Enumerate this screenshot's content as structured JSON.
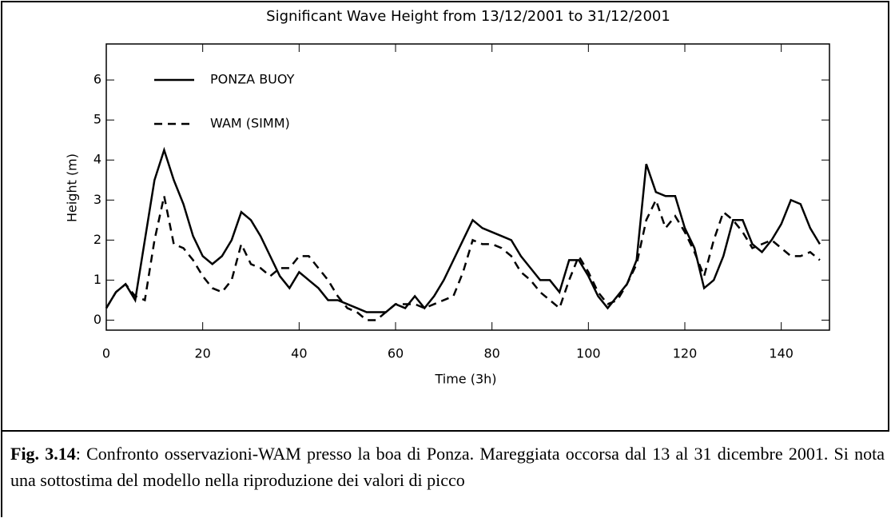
{
  "chart_data": {
    "type": "line",
    "title": "Significant Wave Height from 13/12/2001 to 31/12/2001",
    "x_label": "Time (3h)",
    "y_label": "Height (m)",
    "x": [
      0,
      2,
      4,
      6,
      8,
      10,
      12,
      14,
      16,
      18,
      20,
      22,
      24,
      26,
      28,
      30,
      32,
      34,
      36,
      38,
      40,
      42,
      44,
      46,
      48,
      50,
      52,
      54,
      56,
      58,
      60,
      62,
      64,
      66,
      68,
      70,
      72,
      74,
      76,
      78,
      80,
      82,
      84,
      86,
      88,
      90,
      92,
      94,
      96,
      98,
      100,
      102,
      104,
      106,
      108,
      110,
      112,
      114,
      116,
      118,
      120,
      122,
      124,
      126,
      128,
      130,
      132,
      134,
      136,
      138,
      140,
      142,
      144,
      146,
      148
    ],
    "series": [
      {
        "name": "PONZA BUOY",
        "color": "#000000",
        "dash": "solid",
        "values": [
          0.3,
          0.7,
          0.9,
          0.5,
          2.0,
          3.5,
          4.25,
          3.5,
          2.9,
          2.1,
          1.6,
          1.4,
          1.6,
          2.0,
          2.7,
          2.5,
          2.1,
          1.6,
          1.1,
          0.8,
          1.2,
          1.0,
          0.8,
          0.5,
          0.5,
          0.4,
          0.3,
          0.2,
          0.2,
          0.2,
          0.4,
          0.3,
          0.6,
          0.3,
          0.6,
          1.0,
          1.5,
          2.0,
          2.5,
          2.3,
          2.2,
          2.1,
          2.0,
          1.6,
          1.3,
          1.0,
          1.0,
          0.7,
          1.5,
          1.5,
          1.1,
          0.6,
          0.3,
          0.6,
          0.9,
          1.5,
          3.9,
          3.2,
          3.1,
          3.1,
          2.3,
          1.8,
          0.8,
          1.0,
          1.6,
          2.5,
          2.5,
          1.9,
          1.7,
          2.0,
          2.4,
          3.0,
          2.9,
          2.3,
          1.9
        ]
      },
      {
        "name": "WAM (SIMM)",
        "color": "#000000",
        "dash": "dashed",
        "values": [
          0.3,
          0.7,
          0.9,
          0.6,
          0.5,
          2.0,
          3.1,
          1.9,
          1.8,
          1.5,
          1.1,
          0.8,
          0.7,
          1.0,
          1.9,
          1.4,
          1.3,
          1.1,
          1.3,
          1.3,
          1.6,
          1.6,
          1.3,
          1.0,
          0.6,
          0.3,
          0.2,
          0.0,
          0.0,
          0.2,
          0.4,
          0.4,
          0.4,
          0.3,
          0.4,
          0.5,
          0.6,
          1.2,
          2.0,
          1.9,
          1.9,
          1.8,
          1.6,
          1.2,
          1.0,
          0.7,
          0.5,
          0.3,
          1.0,
          1.6,
          1.2,
          0.7,
          0.4,
          0.5,
          0.9,
          1.4,
          2.5,
          3.0,
          2.3,
          2.6,
          2.2,
          1.7,
          1.1,
          2.0,
          2.7,
          2.5,
          2.2,
          1.8,
          1.9,
          2.0,
          1.8,
          1.6,
          1.6,
          1.7,
          1.5
        ]
      }
    ],
    "xlim": [
      0,
      150
    ],
    "xticks": [
      0,
      20,
      40,
      60,
      80,
      100,
      120,
      140
    ],
    "ylim": [
      -0.25,
      6.9
    ],
    "yticks": [
      0,
      1,
      2,
      3,
      4,
      5,
      6
    ],
    "legend": "upper left"
  },
  "caption": {
    "label": "Fig. 3.14",
    "text": ": Confronto osservazioni-WAM presso la boa di Ponza. Mareggiata occorsa dal 13 al 31 dicembre 2001. Si nota una sottostima del modello nella riproduzione dei valori di picco"
  }
}
